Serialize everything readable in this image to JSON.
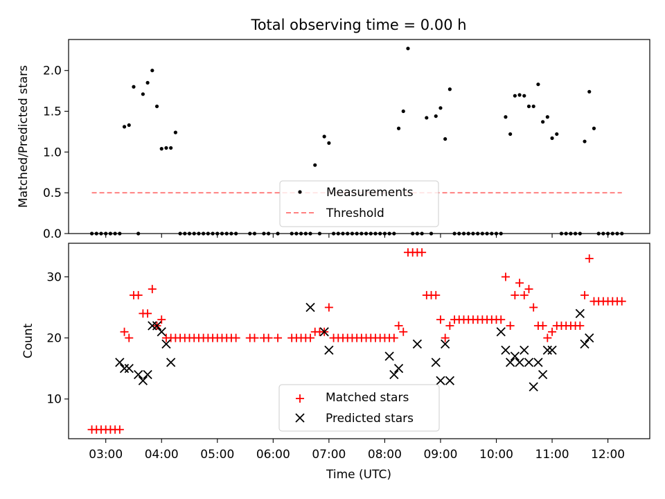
{
  "title": "Total observing time = 0.00 h",
  "chart_data": [
    {
      "type": "scatter",
      "ylabel": "Matched/Predicted stars",
      "ylim": [
        0,
        2.38
      ],
      "yticks": [
        "0.0",
        "0.5",
        "1.0",
        "1.5",
        "2.0"
      ],
      "ytick_values": [
        0,
        0.5,
        1.0,
        1.5,
        2.0
      ],
      "legend_position": "bottom-center",
      "series": [
        {
          "name": "Measurements",
          "marker": "dot",
          "color": "#000000",
          "x": [
            "02:45",
            "02:50",
            "02:55",
            "03:00",
            "03:05",
            "03:10",
            "03:15",
            "03:20",
            "03:25",
            "03:30",
            "03:35",
            "03:40",
            "03:45",
            "03:50",
            "03:55",
            "04:00",
            "04:05",
            "04:10",
            "04:15",
            "04:20",
            "04:25",
            "04:30",
            "04:35",
            "04:40",
            "04:45",
            "04:50",
            "04:55",
            "05:00",
            "05:05",
            "05:10",
            "05:15",
            "05:20",
            "05:35",
            "05:40",
            "05:50",
            "05:55",
            "06:05",
            "06:20",
            "06:25",
            "06:30",
            "06:35",
            "06:40",
            "06:45",
            "06:50",
            "06:55",
            "07:00",
            "07:05",
            "07:10",
            "07:15",
            "07:20",
            "07:25",
            "07:30",
            "07:35",
            "07:40",
            "07:45",
            "07:50",
            "07:55",
            "08:00",
            "08:05",
            "08:10",
            "08:15",
            "08:20",
            "08:25",
            "08:30",
            "08:35",
            "08:40",
            "08:45",
            "08:50",
            "08:55",
            "09:00",
            "09:05",
            "09:10",
            "09:15",
            "09:20",
            "09:25",
            "09:30",
            "09:35",
            "09:40",
            "09:45",
            "09:50",
            "09:55",
            "10:00",
            "10:05",
            "10:10",
            "10:15",
            "10:20",
            "10:25",
            "10:30",
            "10:35",
            "10:40",
            "10:45",
            "10:50",
            "10:55",
            "11:00",
            "11:05",
            "11:10",
            "11:15",
            "11:20",
            "11:25",
            "11:30",
            "11:35",
            "11:40",
            "11:45",
            "11:50",
            "11:55",
            "12:00",
            "12:05",
            "12:10",
            "12:15"
          ],
          "values": [
            0,
            0,
            0,
            0,
            0,
            0,
            0,
            1.31,
            1.33,
            1.8,
            0,
            1.71,
            1.85,
            2.0,
            1.56,
            1.04,
            1.05,
            1.05,
            1.24,
            0,
            0,
            0,
            0,
            0,
            0,
            0,
            0,
            0,
            0,
            0,
            0,
            0,
            0,
            0,
            0,
            0,
            0,
            0,
            0,
            0,
            0,
            0,
            0.84,
            0,
            1.19,
            1.11,
            0,
            0,
            0,
            0,
            0,
            0,
            0,
            0,
            0,
            0,
            0,
            0,
            0,
            0,
            1.29,
            1.5,
            2.27,
            0,
            0,
            0,
            1.42,
            0,
            1.44,
            1.54,
            1.16,
            1.77,
            0,
            0,
            0,
            0,
            0,
            0,
            0,
            0,
            0,
            0,
            0,
            1.43,
            1.22,
            1.69,
            1.7,
            1.69,
            1.56,
            1.56,
            1.83,
            1.37,
            1.43,
            1.17,
            1.22,
            0,
            0,
            0,
            0,
            0,
            1.13,
            1.74,
            1.29,
            0,
            0,
            0,
            0,
            0,
            0
          ]
        },
        {
          "name": "Threshold",
          "style": "dashed",
          "color": "#ff8080",
          "x": [
            "02:45",
            "12:15"
          ],
          "values": [
            0.5,
            0.5
          ]
        }
      ]
    },
    {
      "type": "scatter",
      "ylabel": "Count",
      "xlabel": "Time (UTC)",
      "ylim": [
        3.5,
        35.5
      ],
      "yticks": [
        "10",
        "20",
        "30"
      ],
      "ytick_values": [
        10,
        20,
        30
      ],
      "x_range_minutes": [
        140,
        765
      ],
      "xticks": [
        "03:00",
        "04:00",
        "05:00",
        "06:00",
        "07:00",
        "08:00",
        "09:00",
        "10:00",
        "11:00",
        "12:00"
      ],
      "legend_position": "bottom-center",
      "series": [
        {
          "name": "Matched stars",
          "marker": "plus",
          "color": "#ff0000",
          "x": [
            "02:45",
            "02:50",
            "02:55",
            "03:00",
            "03:05",
            "03:10",
            "03:15",
            "03:20",
            "03:25",
            "03:30",
            "03:35",
            "03:40",
            "03:45",
            "03:50",
            "03:55",
            "04:00",
            "04:05",
            "04:10",
            "04:15",
            "04:20",
            "04:25",
            "04:30",
            "04:35",
            "04:40",
            "04:45",
            "04:50",
            "04:55",
            "05:00",
            "05:05",
            "05:10",
            "05:15",
            "05:20",
            "05:35",
            "05:40",
            "05:50",
            "05:55",
            "06:05",
            "06:20",
            "06:25",
            "06:30",
            "06:35",
            "06:40",
            "06:45",
            "06:50",
            "06:55",
            "07:00",
            "07:05",
            "07:10",
            "07:15",
            "07:20",
            "07:25",
            "07:30",
            "07:35",
            "07:40",
            "07:45",
            "07:50",
            "07:55",
            "08:00",
            "08:05",
            "08:10",
            "08:15",
            "08:20",
            "08:25",
            "08:30",
            "08:35",
            "08:40",
            "08:45",
            "08:50",
            "08:55",
            "09:00",
            "09:05",
            "09:10",
            "09:15",
            "09:20",
            "09:25",
            "09:30",
            "09:35",
            "09:40",
            "09:45",
            "09:50",
            "09:55",
            "10:00",
            "10:05",
            "10:10",
            "10:15",
            "10:20",
            "10:25",
            "10:30",
            "10:35",
            "10:40",
            "10:45",
            "10:50",
            "10:55",
            "11:00",
            "11:05",
            "11:10",
            "11:15",
            "11:20",
            "11:25",
            "11:30",
            "11:35",
            "11:40",
            "11:45",
            "11:50",
            "11:55",
            "12:00",
            "12:05",
            "12:10",
            "12:15"
          ],
          "values": [
            5,
            5,
            5,
            5,
            5,
            5,
            5,
            21,
            20,
            27,
            27,
            24,
            24,
            28,
            22,
            23,
            20,
            20,
            20,
            20,
            20,
            20,
            20,
            20,
            20,
            20,
            20,
            20,
            20,
            20,
            20,
            20,
            20,
            20,
            20,
            20,
            20,
            20,
            20,
            20,
            20,
            20,
            21,
            21,
            21,
            25,
            20,
            20,
            20,
            20,
            20,
            20,
            20,
            20,
            20,
            20,
            20,
            20,
            20,
            20,
            22,
            21,
            34,
            34,
            34,
            34,
            27,
            27,
            27,
            23,
            20,
            22,
            23,
            23,
            23,
            23,
            23,
            23,
            23,
            23,
            23,
            23,
            23,
            30,
            22,
            27,
            29,
            27,
            28,
            25,
            22,
            22,
            20,
            21,
            22,
            22,
            22,
            22,
            22,
            22,
            27,
            33,
            26,
            26,
            26,
            26,
            26,
            26,
            26
          ]
        },
        {
          "name": "Predicted stars",
          "marker": "x",
          "color": "#000000",
          "x": [
            "03:15",
            "03:20",
            "03:25",
            "03:35",
            "03:40",
            "03:45",
            "03:50",
            "03:55",
            "04:00",
            "04:05",
            "04:10",
            "06:40",
            "06:55",
            "07:00",
            "08:05",
            "08:10",
            "08:15",
            "08:35",
            "08:55",
            "09:00",
            "09:05",
            "09:10",
            "10:05",
            "10:10",
            "10:15",
            "10:20",
            "10:25",
            "10:30",
            "10:35",
            "10:40",
            "10:45",
            "10:50",
            "10:55",
            "11:00",
            "11:30",
            "11:35",
            "11:40"
          ],
          "values": [
            16,
            15,
            15,
            14,
            13,
            14,
            22,
            22,
            21,
            19,
            16,
            25,
            21,
            18,
            17,
            14,
            15,
            19,
            16,
            13,
            19,
            13,
            21,
            18,
            16,
            17,
            16,
            18,
            16,
            12,
            16,
            14,
            18,
            18,
            24,
            19,
            20
          ]
        }
      ]
    }
  ]
}
